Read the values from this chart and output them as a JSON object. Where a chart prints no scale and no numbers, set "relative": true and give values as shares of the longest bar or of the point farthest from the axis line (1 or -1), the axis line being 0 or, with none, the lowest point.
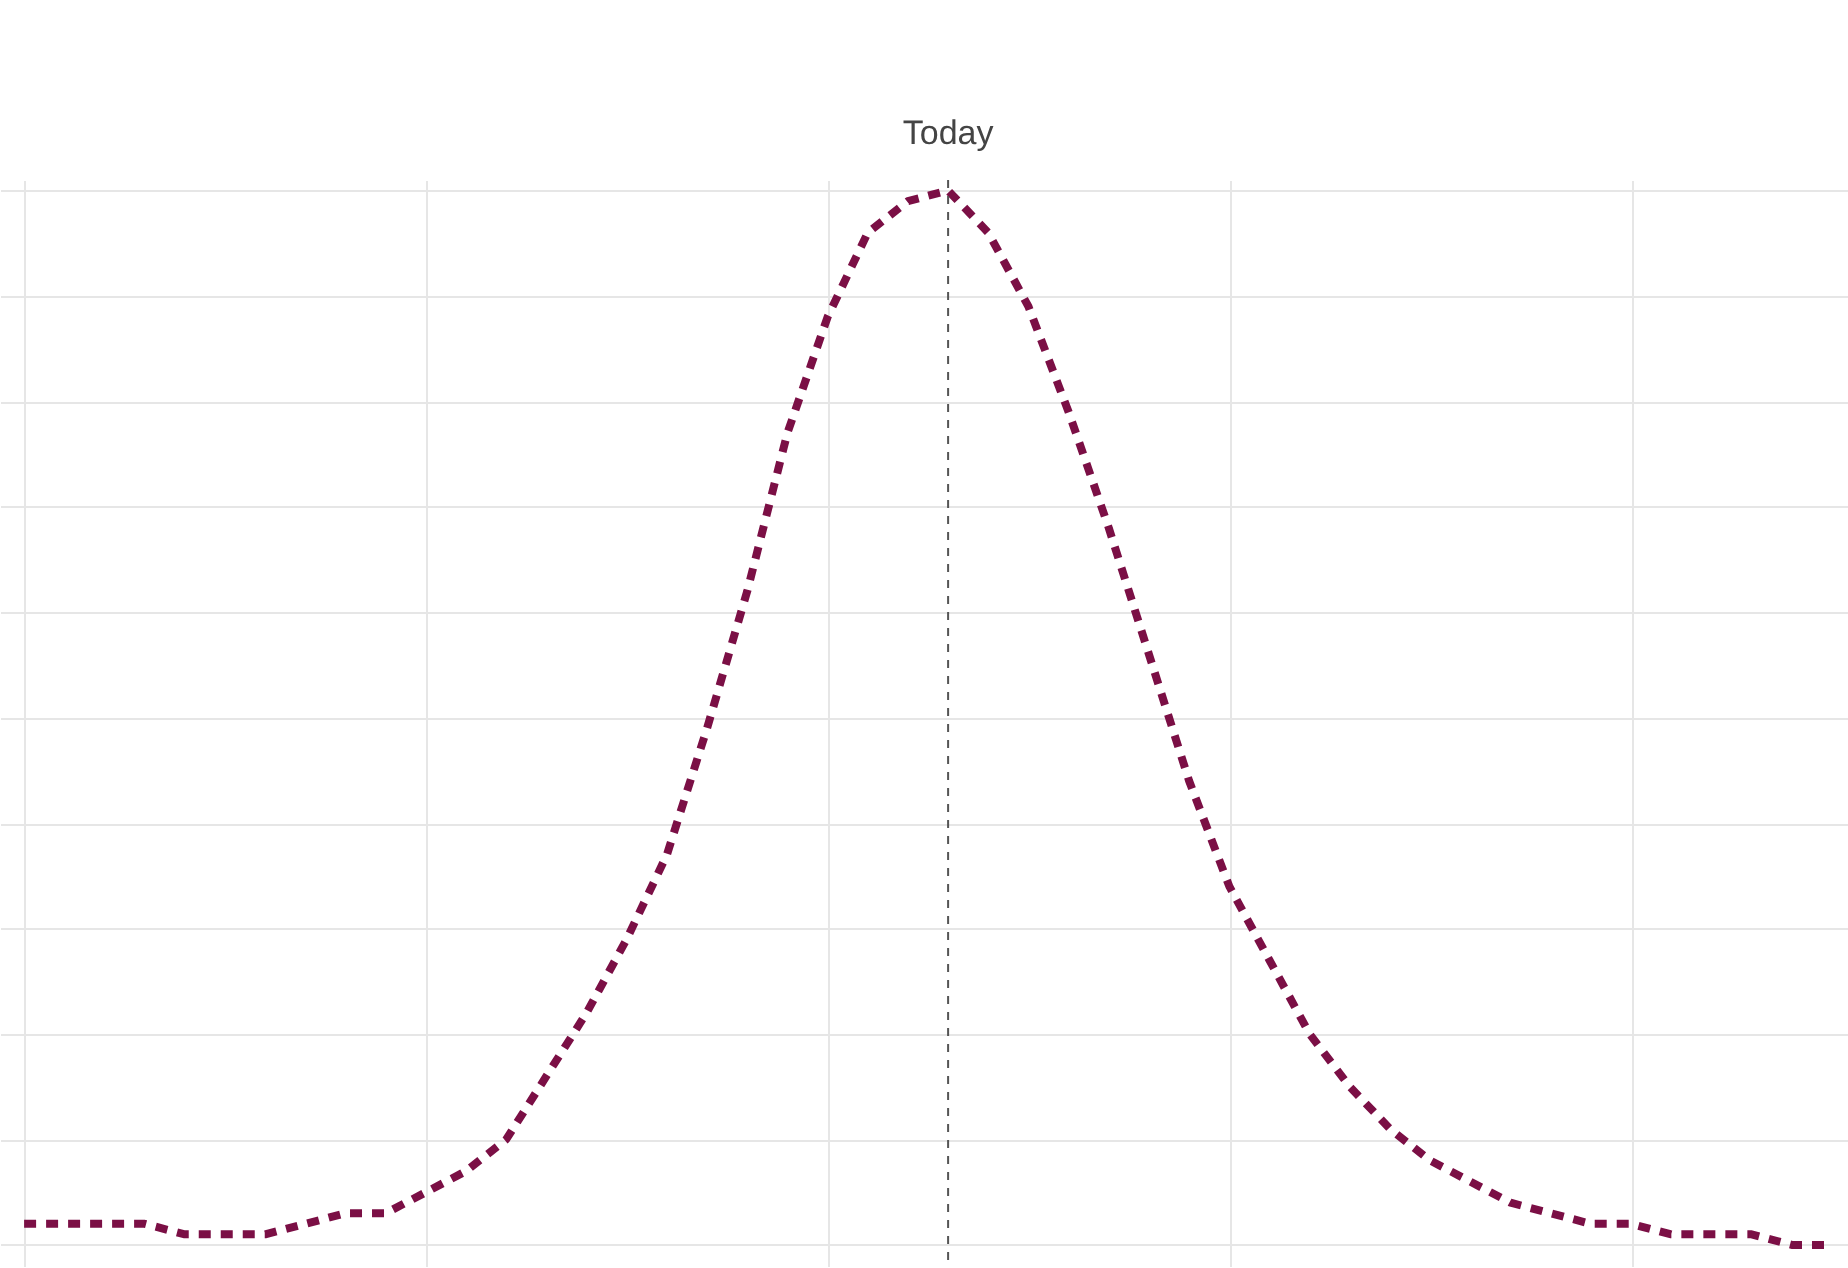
{
  "chart_data": {
    "type": "line",
    "relative": true,
    "grid": true,
    "tick_labels": false,
    "line_style": "dashed",
    "marker": "none",
    "categories": [
      null,
      null,
      null,
      null,
      null,
      null,
      null,
      null,
      null,
      null,
      null,
      null,
      null,
      null,
      null,
      null,
      null,
      null,
      null,
      null,
      null,
      null,
      null,
      null,
      null,
      null,
      null,
      null,
      null,
      null,
      null,
      null,
      null,
      null,
      null,
      null,
      null,
      null,
      null,
      null,
      null,
      null,
      null,
      null,
      null,
      null
    ],
    "series": [
      {
        "color": "#7b0f45",
        "values": [
          0.02,
          0.02,
          0.02,
          0.02,
          0.01,
          0.01,
          0.01,
          0.02,
          0.03,
          0.03,
          0.05,
          0.07,
          0.1,
          0.16,
          0.22,
          0.29,
          0.37,
          0.49,
          0.62,
          0.77,
          0.88,
          0.96,
          0.99,
          1.0,
          0.96,
          0.89,
          0.79,
          0.68,
          0.56,
          0.44,
          0.34,
          0.27,
          0.2,
          0.15,
          0.11,
          0.08,
          0.06,
          0.04,
          0.03,
          0.02,
          0.02,
          0.01,
          0.01,
          0.01,
          0.0,
          0.0
        ]
      }
    ],
    "annotations": [
      "Today"
    ]
  }
}
